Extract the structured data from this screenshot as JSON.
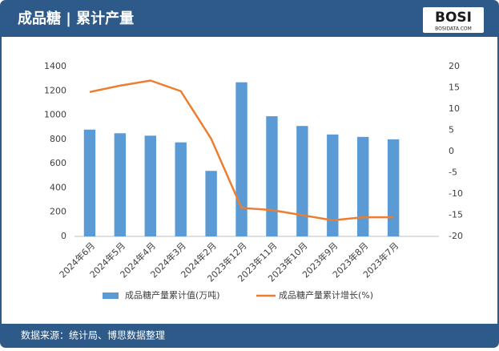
{
  "header": {
    "title": "成品糖 | 累计产量"
  },
  "logo": {
    "name": "BOSI",
    "url": "BOSIDATA.COM"
  },
  "footer": {
    "source": "数据来源：统计局、博思数据整理"
  },
  "chart_data": {
    "type": "bar-line",
    "categories": [
      "2024年6月",
      "2024年5月",
      "2024年4月",
      "2024年3月",
      "2024年2月",
      "2023年12月",
      "2023年11月",
      "2023年10月",
      "2023年9月",
      "2023年8月",
      "2023年7月",
      null
    ],
    "series": [
      {
        "name": "成品糖产量累计值(万吨)",
        "color": "#5b9bd5",
        "kind": "bar",
        "values": [
          880,
          850,
          830,
          775,
          540,
          1270,
          990,
          910,
          840,
          820,
          800,
          null
        ]
      },
      {
        "name": "成品糖产量累计增长(%)",
        "color": "#ed7d31",
        "kind": "line",
        "axis": "y2",
        "values": [
          14,
          15.5,
          16.7,
          14.2,
          3,
          -13.3,
          -13.8,
          -15,
          -16.2,
          -15.5,
          -15.5,
          null
        ]
      }
    ],
    "ylim": [
      0,
      1400
    ],
    "yticks": [
      0,
      200,
      400,
      600,
      800,
      1000,
      1200,
      1400
    ],
    "y2lim": [
      -20,
      20
    ],
    "y2ticks": [
      -20,
      -15,
      -10,
      -5,
      0,
      5,
      10,
      15,
      20
    ],
    "grid": false,
    "legend": "bottom"
  }
}
